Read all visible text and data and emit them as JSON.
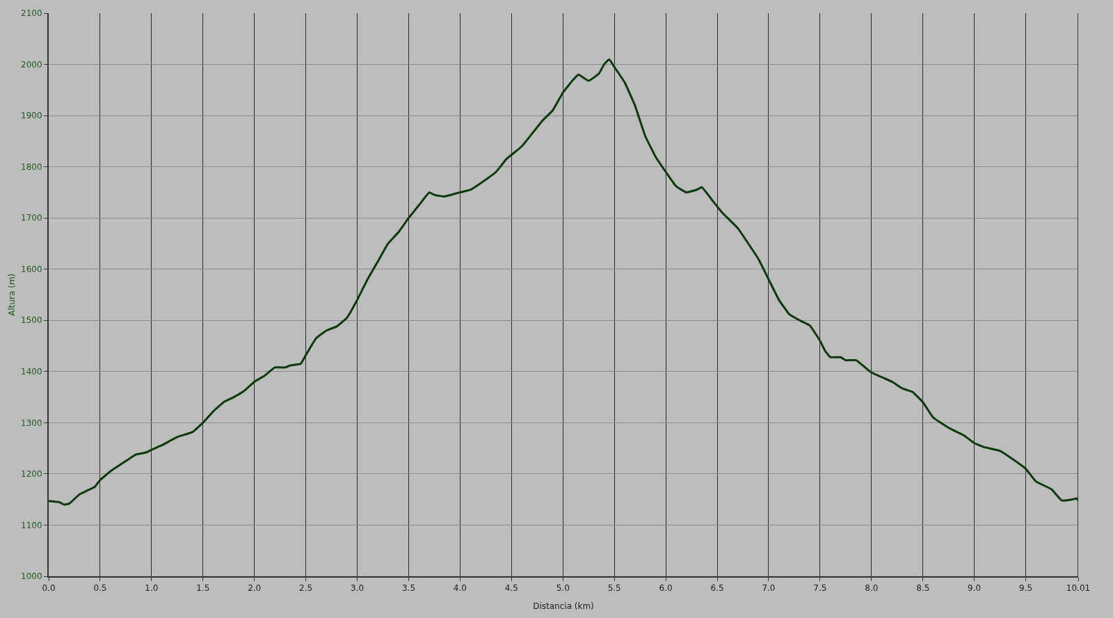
{
  "chart_data": {
    "type": "line",
    "xlabel": "Distancia (km)",
    "ylabel": "Altura (m)",
    "x": [
      0.0,
      0.1,
      0.15,
      0.2,
      0.3,
      0.45,
      0.5,
      0.6,
      0.75,
      0.85,
      0.95,
      1.0,
      1.1,
      1.25,
      1.4,
      1.5,
      1.6,
      1.7,
      1.8,
      1.9,
      2.0,
      2.1,
      2.2,
      2.3,
      2.35,
      2.45,
      2.5,
      2.6,
      2.7,
      2.8,
      2.9,
      3.0,
      3.1,
      3.2,
      3.3,
      3.4,
      3.5,
      3.6,
      3.7,
      3.75,
      3.85,
      4.0,
      4.1,
      4.2,
      4.35,
      4.45,
      4.6,
      4.8,
      4.9,
      5.0,
      5.1,
      5.15,
      5.25,
      5.35,
      5.4,
      5.45,
      5.5,
      5.6,
      5.7,
      5.8,
      5.9,
      6.0,
      6.1,
      6.2,
      6.3,
      6.35,
      6.45,
      6.55,
      6.7,
      6.9,
      7.0,
      7.1,
      7.2,
      7.3,
      7.4,
      7.5,
      7.55,
      7.6,
      7.7,
      7.75,
      7.85,
      8.0,
      8.2,
      8.3,
      8.4,
      8.5,
      8.6,
      8.75,
      8.9,
      9.0,
      9.1,
      9.25,
      9.4,
      9.5,
      9.6,
      9.75,
      9.85,
      9.95,
      10.0,
      10.01
    ],
    "series": [
      {
        "color": "#0a3a0a",
        "values": [
          1147,
          1145,
          1140,
          1142,
          1160,
          1175,
          1188,
          1205,
          1225,
          1238,
          1242,
          1247,
          1256,
          1272,
          1282,
          1300,
          1322,
          1340,
          1350,
          1362,
          1380,
          1392,
          1408,
          1408,
          1412,
          1415,
          1432,
          1465,
          1480,
          1488,
          1505,
          1540,
          1580,
          1615,
          1650,
          1672,
          1700,
          1725,
          1750,
          1745,
          1742,
          1750,
          1755,
          1768,
          1790,
          1815,
          1840,
          1890,
          1910,
          1945,
          1970,
          1980,
          1968,
          1982,
          2000,
          2010,
          1995,
          1965,
          1920,
          1860,
          1820,
          1790,
          1762,
          1750,
          1755,
          1760,
          1735,
          1710,
          1680,
          1620,
          1580,
          1540,
          1512,
          1500,
          1490,
          1460,
          1440,
          1428,
          1428,
          1422,
          1422,
          1398,
          1380,
          1367,
          1360,
          1340,
          1310,
          1290,
          1275,
          1260,
          1252,
          1245,
          1225,
          1210,
          1185,
          1170,
          1148,
          1150,
          1152,
          1147
        ]
      }
    ],
    "xlim": [
      0,
      10.01
    ],
    "xticks": [
      {
        "value": 0,
        "label": "0.0"
      },
      0.5,
      {
        "value": 1,
        "label": "1.0"
      },
      1.5,
      {
        "value": 2,
        "label": "2.0"
      },
      2.5,
      {
        "value": 3,
        "label": "3.0"
      },
      3.5,
      {
        "value": 4,
        "label": "4.0"
      },
      4.5,
      {
        "value": 5,
        "label": "5.0"
      },
      5.5,
      {
        "value": 6,
        "label": "6.0"
      },
      6.5,
      {
        "value": 7,
        "label": "7.0"
      },
      7.5,
      {
        "value": 8,
        "label": "8.0"
      },
      8.5,
      {
        "value": 9,
        "label": "9.0"
      },
      9.5,
      10.01
    ],
    "ylim": [
      1000,
      2100
    ],
    "yticks": [
      1000,
      1100,
      1200,
      1300,
      1400,
      1500,
      1600,
      1700,
      1800,
      1900,
      2000,
      2100
    ],
    "grid": true,
    "marker": "none",
    "line_style": "solid"
  }
}
